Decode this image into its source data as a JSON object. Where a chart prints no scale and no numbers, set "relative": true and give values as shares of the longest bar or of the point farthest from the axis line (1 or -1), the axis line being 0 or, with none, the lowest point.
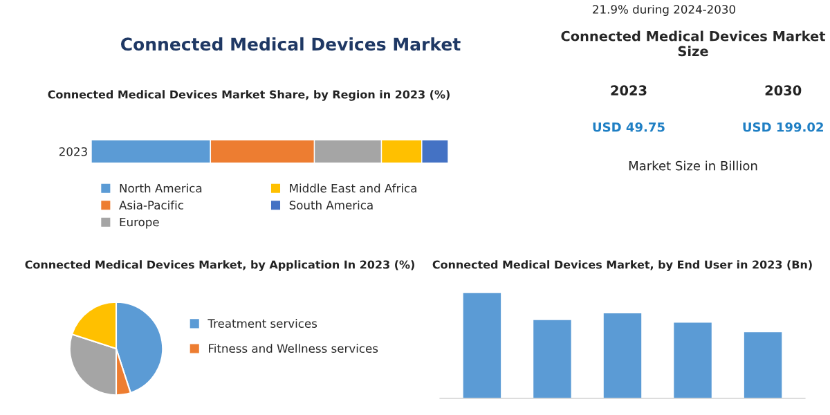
{
  "chart_data": [
    {
      "type": "other",
      "title": "Connected Medical Devices Market Size",
      "annotations": [
        "2023",
        "2030",
        "USD 49.75",
        "USD 199.02",
        "Market Size in Billion",
        "Connected Medical Devices Market",
        "21.9% during 2024-2030"
      ]
    },
    {
      "type": "bar",
      "title": "Connected Medical Devices Market Share, by Region in 2023 (%)",
      "orientation": "horizontal",
      "stacked": true,
      "relative": true,
      "legend": "bottom",
      "categories": [
        "2023"
      ],
      "series": [
        {
          "name": "North America",
          "color": "#5b9bd5",
          "values": [
            0.334
          ]
        },
        {
          "name": "Asia-Pacific",
          "color": "#ed7d31",
          "values": [
            0.291
          ]
        },
        {
          "name": "Europe",
          "color": "#a5a5a5",
          "values": [
            0.188
          ]
        },
        {
          "name": "Middle East and Africa",
          "color": "#ffc000",
          "values": [
            0.113
          ]
        },
        {
          "name": "South America",
          "color": "#4472c4",
          "values": [
            0.074
          ]
        }
      ]
    },
    {
      "type": "pie",
      "title": "Connected Medical Devices Market, by Application In 2023 (%)",
      "legend": "right",
      "categories": [
        "Treatment services",
        "Fitness and Wellness services",
        null,
        null
      ],
      "values": [
        45,
        5,
        30,
        20
      ],
      "colors": [
        "#5b9bd5",
        "#ed7d31",
        "#a5a5a5",
        "#ffc000"
      ]
    },
    {
      "type": "bar",
      "title": "Connected Medical Devices Market, by End User in 2023 (Bn)",
      "relative": true,
      "categories": [
        null,
        null,
        null,
        null,
        null
      ],
      "values": [
        1,
        0.745,
        0.809,
        0.72,
        0.631
      ],
      "color": "#5b9bd5"
    }
  ]
}
